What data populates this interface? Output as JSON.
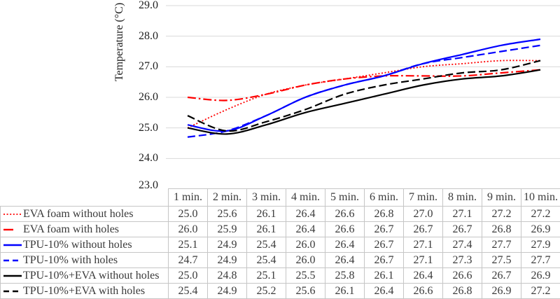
{
  "chart_data": {
    "type": "line",
    "title": "",
    "xlabel": "",
    "ylabel": "Temperature (°C)",
    "ylim": [
      23.0,
      29.0
    ],
    "ytick_step": 1.0,
    "yticks": [
      "29.0",
      "28.0",
      "27.0",
      "26.0",
      "25.0",
      "24.0",
      "23.0"
    ],
    "grid": "horizontal-only",
    "legend_position": "data-table-left",
    "value_format": "one-decimal",
    "categories": [
      "1 min.",
      "2 min.",
      "3 min.",
      "4 min.",
      "5 min.",
      "6 min.",
      "7 min.",
      "8 min.",
      "9 min.",
      "10 min."
    ],
    "series": [
      {
        "name": "EVA foam without holes",
        "color": "#FF0000",
        "line_style": "dotted",
        "values": [
          25.0,
          25.6,
          26.1,
          26.4,
          26.6,
          26.8,
          27.0,
          27.1,
          27.2,
          27.2
        ]
      },
      {
        "name": "EVA foam with holes",
        "color": "#FF0000",
        "line_style": "dash-dot",
        "values": [
          26.0,
          25.9,
          26.1,
          26.4,
          26.6,
          26.7,
          26.7,
          26.7,
          26.8,
          26.9
        ]
      },
      {
        "name": "TPU-10% without holes",
        "color": "#0000FF",
        "line_style": "solid",
        "values": [
          25.1,
          24.9,
          25.4,
          26.0,
          26.4,
          26.7,
          27.1,
          27.4,
          27.7,
          27.9
        ]
      },
      {
        "name": "TPU-10% with holes",
        "color": "#0000FF",
        "line_style": "dashed",
        "values": [
          24.7,
          24.9,
          25.4,
          26.0,
          26.4,
          26.7,
          27.1,
          27.3,
          27.5,
          27.7
        ]
      },
      {
        "name": "TPU-10%+EVA without holes",
        "color": "#000000",
        "line_style": "solid",
        "values": [
          25.0,
          24.8,
          25.1,
          25.5,
          25.8,
          26.1,
          26.4,
          26.6,
          26.7,
          26.9
        ]
      },
      {
        "name": "TPU-10%+EVA with holes",
        "color": "#000000",
        "line_style": "dashed",
        "values": [
          25.4,
          24.9,
          25.2,
          25.6,
          26.1,
          26.4,
          26.6,
          26.8,
          26.9,
          27.2
        ]
      }
    ],
    "colors": {
      "grid": "#d9d9d9",
      "table_border": "#c6c6c6",
      "text": "#3a3a3a"
    }
  }
}
